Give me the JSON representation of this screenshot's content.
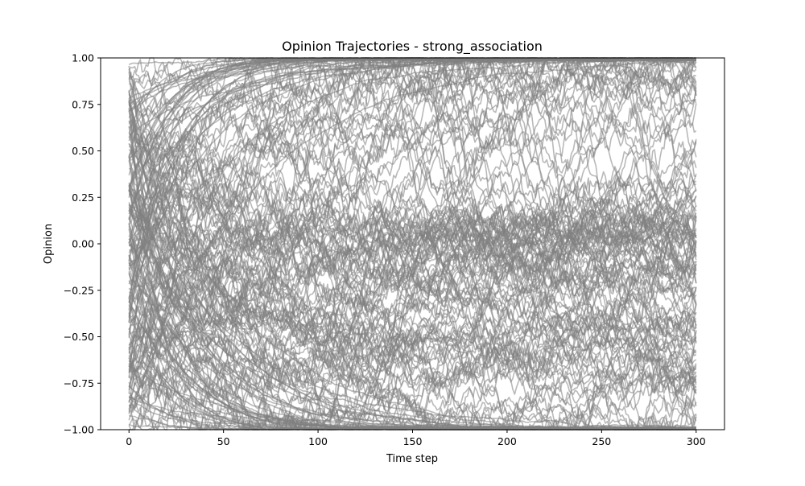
{
  "chart_data": {
    "type": "line",
    "title": "Opinion Trajectories - strong_association",
    "xlabel": "Time step",
    "ylabel": "Opinion",
    "xlim": [
      -15,
      315
    ],
    "ylim": [
      -1.0,
      1.0
    ],
    "xticks": [
      0,
      50,
      100,
      150,
      200,
      250,
      300
    ],
    "xtick_labels": [
      "0",
      "50",
      "100",
      "150",
      "200",
      "250",
      "300"
    ],
    "yticks": [
      -1.0,
      -0.75,
      -0.5,
      -0.25,
      0.0,
      0.25,
      0.5,
      0.75,
      1.0
    ],
    "ytick_labels": [
      "−1.00",
      "−0.75",
      "−0.50",
      "−0.25",
      "0.00",
      "0.25",
      "0.50",
      "0.75",
      "1.00"
    ],
    "grid": false,
    "legend": "none",
    "line_color": "#808080",
    "line_alpha": 0.55,
    "series_count": 200,
    "time_steps": 301,
    "start_range": [
      -1.0,
      1.0
    ],
    "attractors": [
      1.0,
      0.72,
      0.12,
      -0.1,
      -0.55,
      -0.75,
      -1.0
    ],
    "end_values_sample": [
      0.98,
      0.95,
      0.92,
      0.86,
      0.72,
      0.68,
      0.6,
      0.42,
      0.3,
      0.15,
      0.03,
      -0.05,
      -0.2,
      -0.4,
      -0.55,
      -0.62,
      -0.7,
      -0.88,
      -0.95,
      -0.98
    ]
  }
}
